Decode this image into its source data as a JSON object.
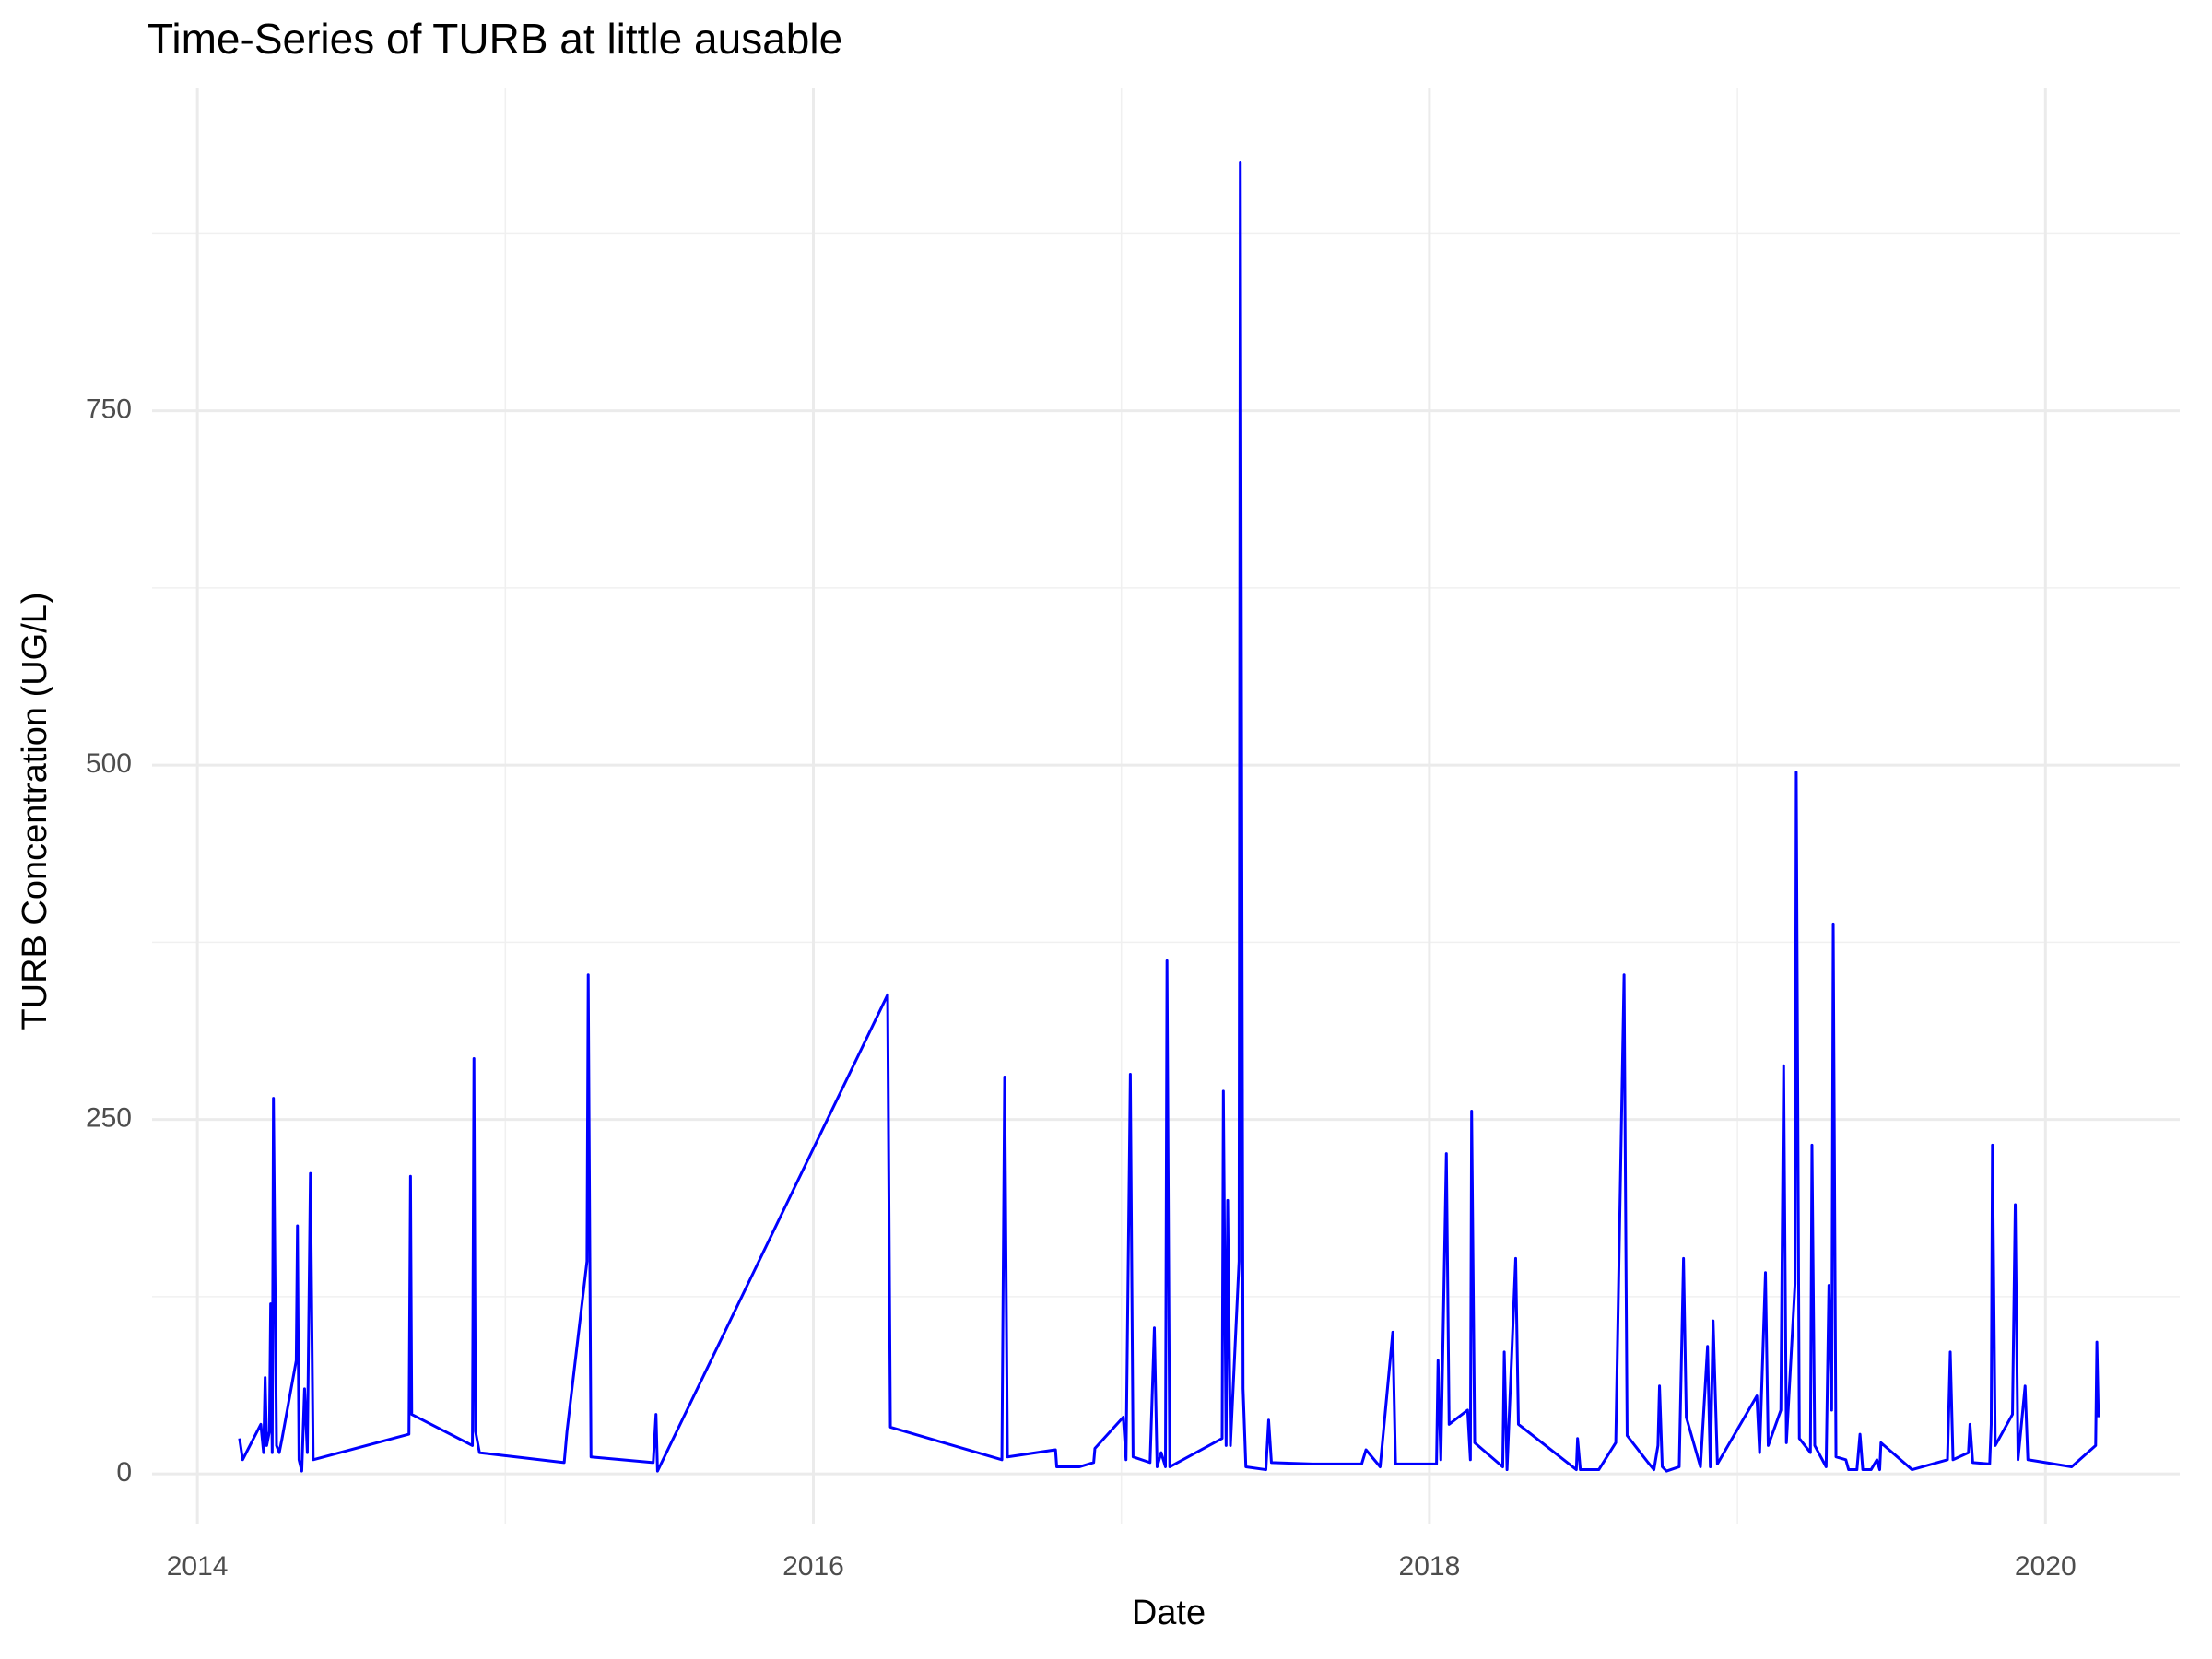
{
  "chart_data": {
    "type": "line",
    "title": "Time-Series of TURB at little ausable",
    "x_label": "Date",
    "y_label": "TURB Concentration (UG/L)",
    "x": [
      2014.137,
      2014.147,
      2014.206,
      2014.215,
      2014.22,
      2014.225,
      2014.234,
      2014.238,
      2014.243,
      2014.247,
      2014.257,
      2014.266,
      2014.275,
      2014.321,
      2014.325,
      2014.33,
      2014.339,
      2014.348,
      2014.357,
      2014.367,
      2014.376,
      2014.687,
      2014.692,
      2014.696,
      2014.893,
      2014.898,
      2014.903,
      2014.916,
      2015.191,
      2015.2,
      2015.265,
      2015.269,
      2015.278,
      2015.48,
      2015.489,
      2015.494,
      2016.241,
      2016.25,
      2016.612,
      2016.621,
      2016.63,
      2016.786,
      2016.79,
      2016.864,
      2016.91,
      2016.914,
      2017.006,
      2017.015,
      2017.029,
      2017.038,
      2017.093,
      2017.107,
      2017.116,
      2017.129,
      2017.143,
      2017.148,
      2017.157,
      2017.327,
      2017.331,
      2017.34,
      2017.345,
      2017.354,
      2017.382,
      2017.386,
      2017.395,
      2017.404,
      2017.469,
      2017.478,
      2017.487,
      2017.62,
      2017.78,
      2017.794,
      2017.84,
      2017.881,
      2017.89,
      2018.023,
      2018.028,
      2018.037,
      2018.055,
      2018.064,
      2018.124,
      2018.133,
      2018.137,
      2018.147,
      2018.238,
      2018.243,
      2018.252,
      2018.28,
      2018.289,
      2018.477,
      2018.481,
      2018.49,
      2018.55,
      2018.605,
      2018.632,
      2018.642,
      2018.71,
      2018.729,
      2018.742,
      2018.747,
      2018.756,
      2018.77,
      2018.811,
      2018.825,
      2018.834,
      2018.88,
      2018.903,
      2018.912,
      2018.921,
      2018.935,
      2019.063,
      2019.072,
      2019.091,
      2019.1,
      2019.141,
      2019.15,
      2019.159,
      2019.187,
      2019.191,
      2019.201,
      2019.237,
      2019.242,
      2019.251,
      2019.288,
      2019.297,
      2019.306,
      2019.311,
      2019.32,
      2019.352,
      2019.361,
      2019.388,
      2019.398,
      2019.407,
      2019.434,
      2019.453,
      2019.462,
      2019.466,
      2019.567,
      2019.682,
      2019.691,
      2019.7,
      2019.75,
      2019.755,
      2019.764,
      2019.819,
      2019.824,
      2019.828,
      2019.837,
      2019.893,
      2019.902,
      2019.911,
      2019.934,
      2019.943,
      2020.085,
      2020.163,
      2020.167,
      2020.172
    ],
    "series": [
      {
        "name": "TURB",
        "color": "#0000ff",
        "values": [
          25,
          10,
          35,
          15,
          68,
          20,
          30,
          120,
          15,
          265,
          20,
          15,
          25,
          80,
          175,
          10,
          2,
          60,
          15,
          212,
          10,
          28,
          210,
          42,
          20,
          293,
          30,
          15,
          8,
          30,
          150,
          352,
          12,
          8,
          42,
          2,
          338,
          33,
          10,
          280,
          12,
          17,
          5,
          5,
          8,
          18,
          40,
          10,
          282,
          12,
          8,
          103,
          5,
          15,
          5,
          362,
          5,
          25,
          270,
          20,
          193,
          20,
          150,
          925,
          60,
          5,
          3,
          38,
          8,
          7,
          7,
          17,
          5,
          100,
          7,
          7,
          80,
          10,
          226,
          35,
          45,
          10,
          256,
          22,
          5,
          86,
          3,
          152,
          35,
          3,
          25,
          3,
          3,
          22,
          352,
          27,
          8,
          3,
          20,
          62,
          5,
          2,
          5,
          152,
          40,
          5,
          90,
          5,
          108,
          7,
          55,
          15,
          142,
          20,
          45,
          288,
          22,
          134,
          495,
          25,
          15,
          232,
          20,
          5,
          133,
          45,
          388,
          12,
          10,
          3,
          3,
          28,
          3,
          3,
          10,
          3,
          22,
          3,
          10,
          86,
          10,
          15,
          35,
          8,
          7,
          35,
          232,
          20,
          42,
          190,
          10,
          62,
          10,
          5,
          20,
          93,
          40
        ]
      }
    ],
    "xlim": [
      2013.853,
      2020.436
    ],
    "xticks": [
      2014,
      2016,
      2018,
      2020
    ],
    "x_minor_ticks": [
      2015,
      2017,
      2019
    ],
    "ylim": [
      -35,
      978
    ],
    "yticks": [
      0,
      250,
      500,
      750
    ],
    "y_minor_ticks": [
      125,
      375,
      625,
      875
    ],
    "grid": true
  }
}
